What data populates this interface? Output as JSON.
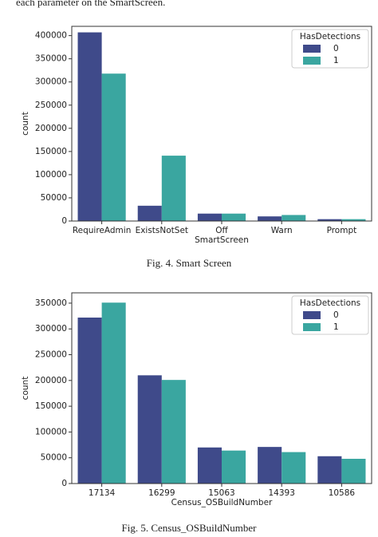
{
  "intro": "each parameter on the SmartScreen.",
  "captions": [
    "Fig. 4.   Smart Screen",
    "Fig. 5.   Census_OSBuildNumber"
  ],
  "chart_data": [
    {
      "type": "bar",
      "xlabel": "SmartScreen",
      "ylabel": "count",
      "categories": [
        "RequireAdmin",
        "ExistsNotSet",
        "Off",
        "Warn",
        "Prompt"
      ],
      "legend_title": "HasDetections",
      "legend": "upper right",
      "series": [
        {
          "name": "0",
          "color": "#3f4a8a",
          "values": [
            407000,
            33000,
            16000,
            10000,
            4000
          ]
        },
        {
          "name": "1",
          "color": "#3aa6a0",
          "values": [
            318000,
            141000,
            16000,
            13000,
            4000
          ]
        }
      ],
      "ylim": [
        0,
        420000
      ],
      "yticks": [
        0,
        50000,
        100000,
        150000,
        200000,
        250000,
        300000,
        350000,
        400000
      ]
    },
    {
      "type": "bar",
      "xlabel": "Census_OSBuildNumber",
      "ylabel": "count",
      "categories": [
        "17134",
        "16299",
        "15063",
        "14393",
        "10586"
      ],
      "legend_title": "HasDetections",
      "legend": "upper right",
      "series": [
        {
          "name": "0",
          "color": "#3f4a8a",
          "values": [
            322000,
            210000,
            70000,
            71000,
            53000
          ]
        },
        {
          "name": "1",
          "color": "#3aa6a0",
          "values": [
            351000,
            201000,
            64000,
            61000,
            48000
          ]
        }
      ],
      "ylim": [
        0,
        370000
      ],
      "yticks": [
        0,
        50000,
        100000,
        150000,
        200000,
        250000,
        300000,
        350000
      ]
    }
  ]
}
